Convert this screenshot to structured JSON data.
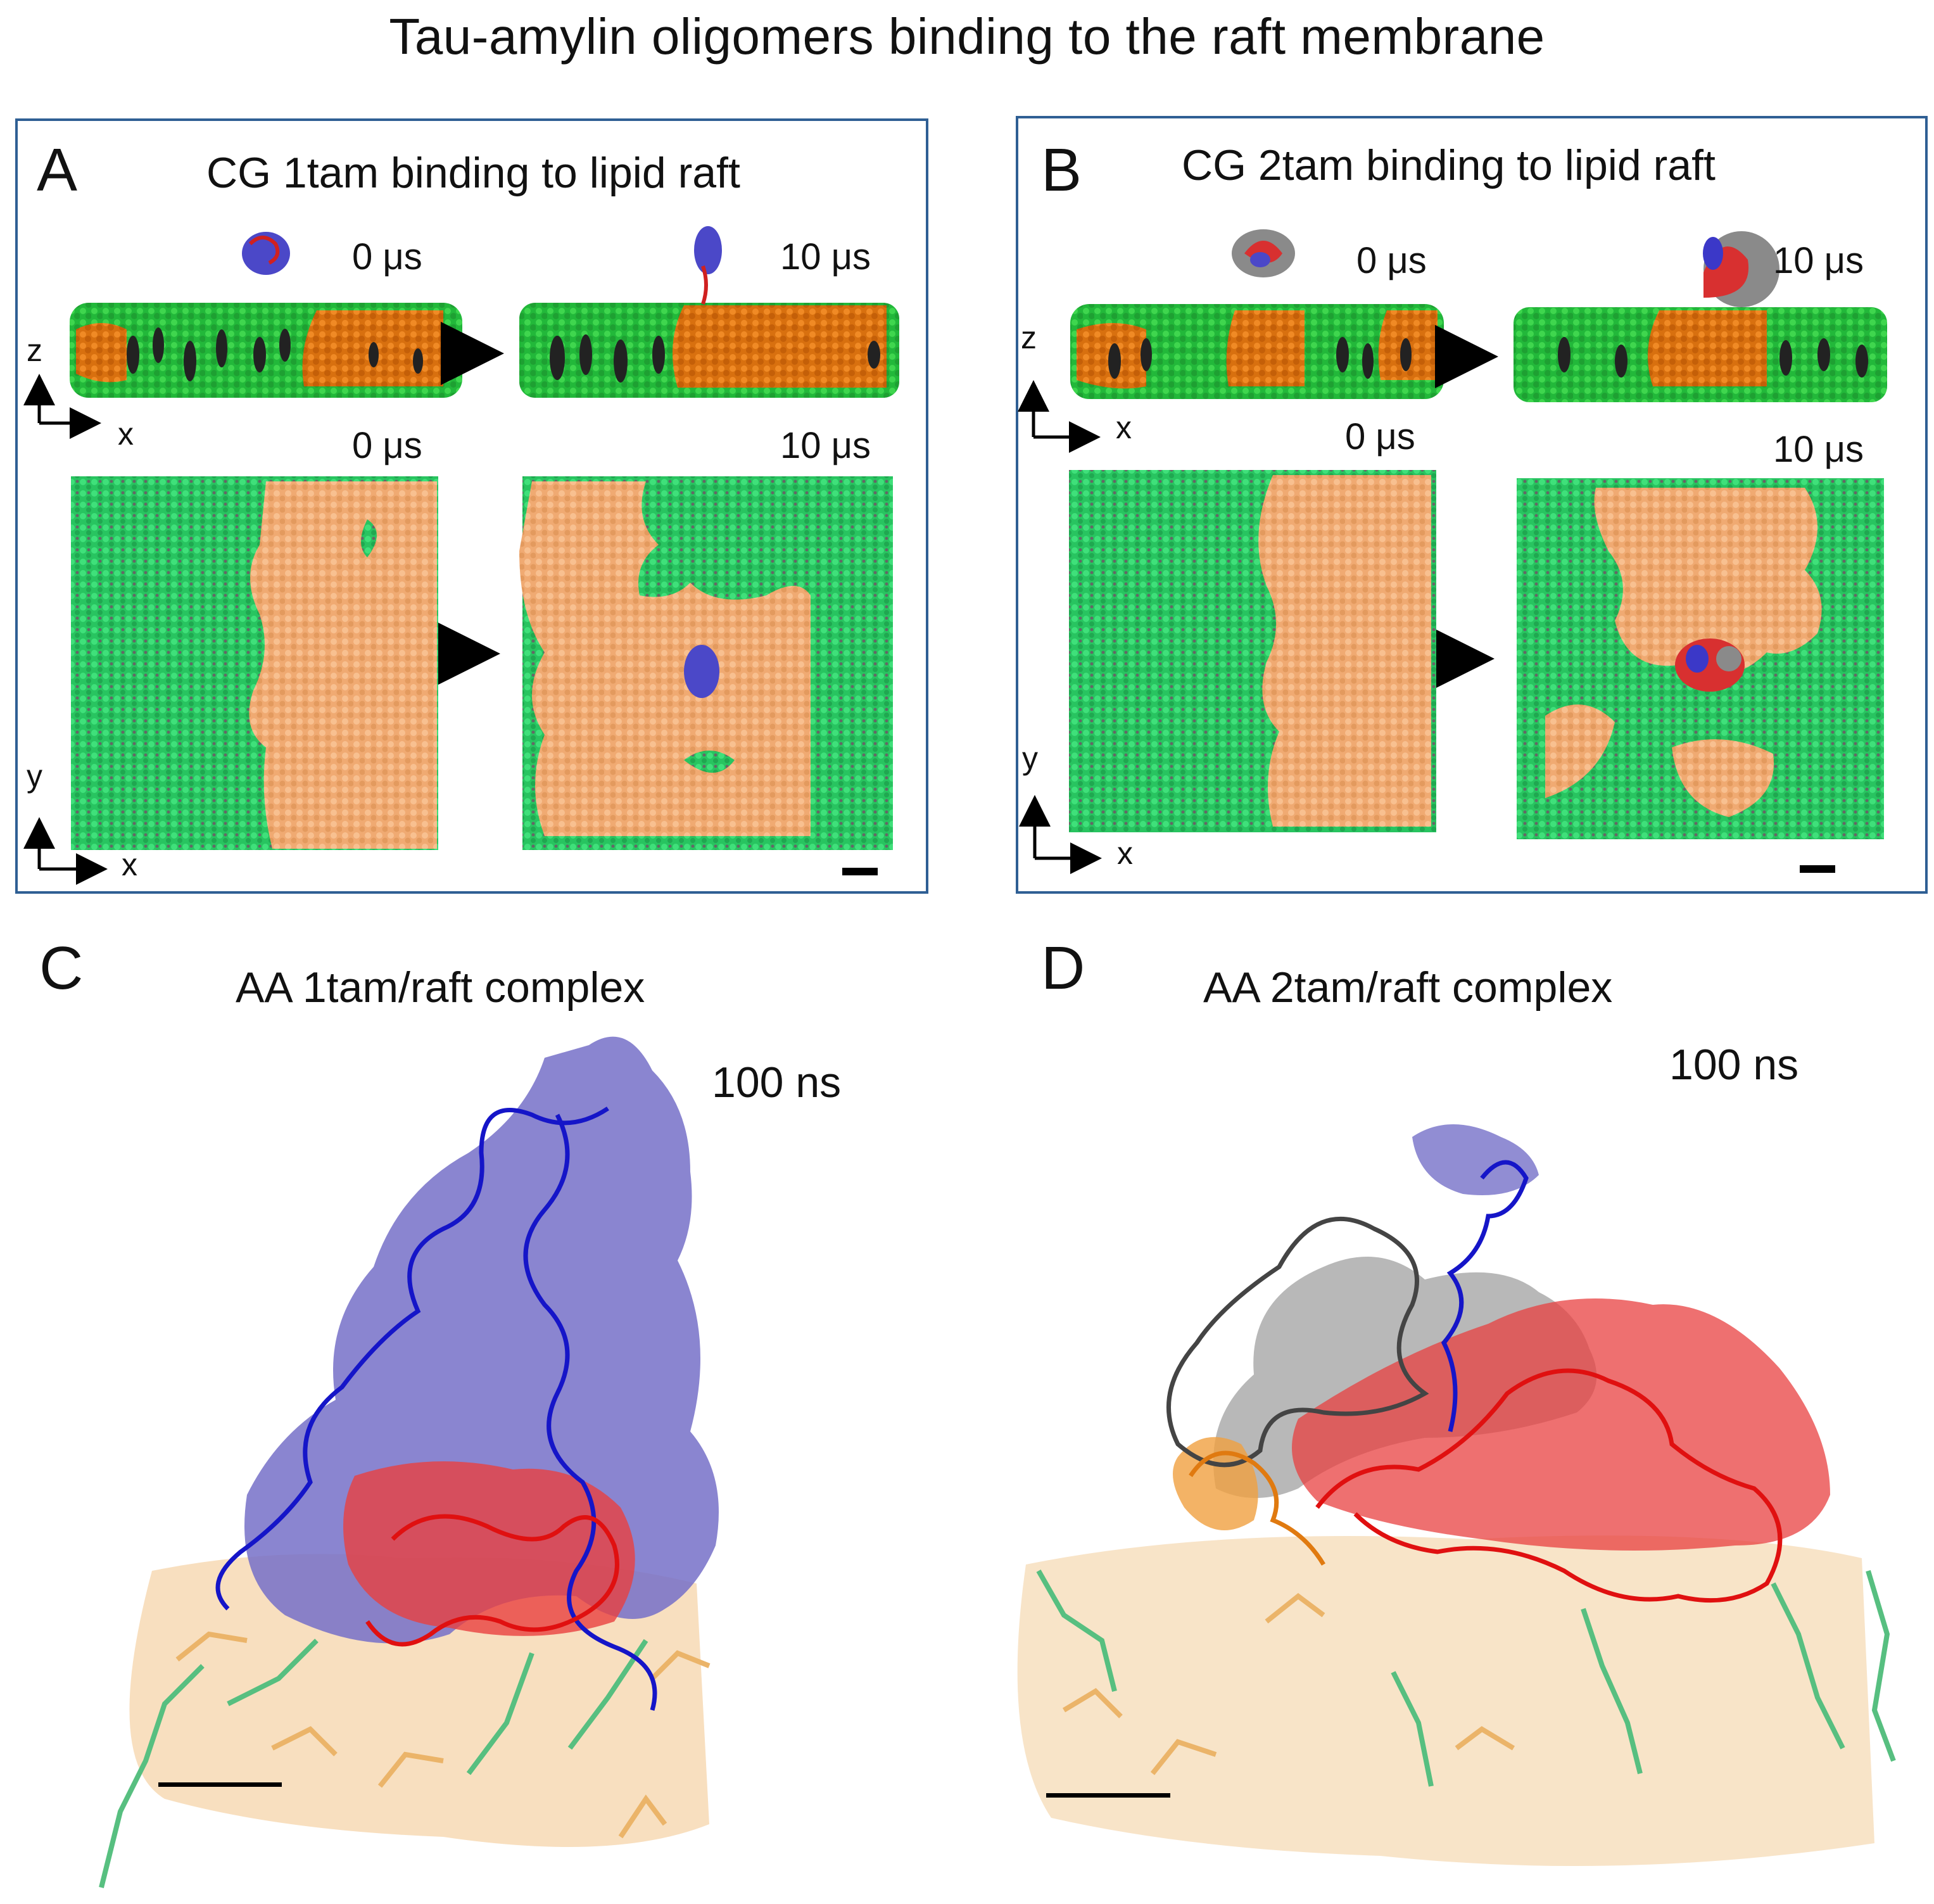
{
  "figure_title": "Tau-amylin oligomers binding to the raft membrane",
  "panels": {
    "A": {
      "letter": "A",
      "subtitle": "CG 1tam binding to lipid raft",
      "side_view": {
        "t0": "0 μs",
        "t1": "10 μs",
        "axis_v": "z",
        "axis_h": "x"
      },
      "top_view": {
        "t0": "0 μs",
        "t1": "10 μs",
        "axis_v": "y",
        "axis_h": "x"
      }
    },
    "B": {
      "letter": "B",
      "subtitle": "CG 2tam binding to lipid raft",
      "side_view": {
        "t0": "0 μs",
        "t1": "10 μs",
        "axis_v": "z",
        "axis_h": "x"
      },
      "top_view": {
        "t0": "0 μs",
        "t1": "10 μs",
        "axis_v": "y",
        "axis_h": "x"
      }
    },
    "C": {
      "letter": "C",
      "subtitle": "AA 1tam/raft complex",
      "time": "100 ns"
    },
    "D": {
      "letter": "D",
      "subtitle": "AA 2tam/raft complex",
      "time": "100 ns"
    }
  },
  "colors": {
    "frame": "#2f5f94",
    "lipid_green": "#2fbf3a",
    "lipid_orange": "#e2781a",
    "lipid_peach": "#f2b07a",
    "lipid_teal": "#2ec866",
    "protein_blue": "#2a2ad0",
    "protein_blue_surface": "#7670c8",
    "protein_red": "#e01818",
    "protein_grey": "#8a8a8a",
    "cholesterol_dark": "#222222"
  }
}
